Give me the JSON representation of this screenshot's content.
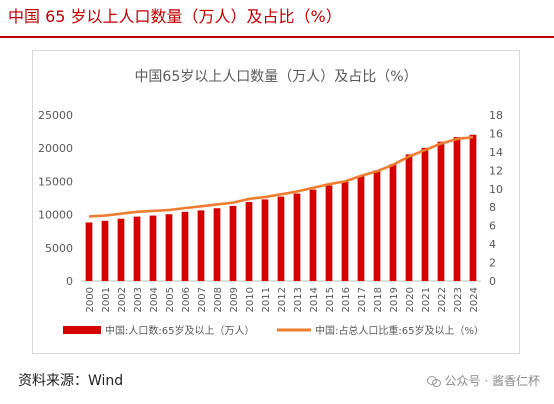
{
  "page": {
    "title": "中国 65 岁以上人口数量（万人）及占比（%）",
    "source": "资料来源：Wind",
    "watermark": "公众号 · 酱香仁杯"
  },
  "colors": {
    "title": "#c00000",
    "bar": "#d40000",
    "line": "#ed7d31"
  },
  "chart_data": {
    "type": "bar",
    "title": "中国65岁以上人口数量（万人）及占比（%）",
    "categories": [
      "2000",
      "2001",
      "2002",
      "2003",
      "2004",
      "2005",
      "2006",
      "2007",
      "2008",
      "2009",
      "2010",
      "2011",
      "2012",
      "2013",
      "2014",
      "2015",
      "2016",
      "2017",
      "2018",
      "2019",
      "2020",
      "2021",
      "2022",
      "2023",
      "2024"
    ],
    "series": [
      {
        "name": "中国:人口数:65岁及以上（万人）",
        "type": "bar",
        "axis": "left",
        "values": [
          8821,
          9062,
          9377,
          9692,
          9857,
          10055,
          10419,
          10636,
          10956,
          11307,
          11894,
          12288,
          12714,
          13161,
          13755,
          14386,
          15003,
          15831,
          16658,
          17603,
          19064,
          20056,
          20978,
          21676,
          22023
        ]
      },
      {
        "name": "中国:占总人口比重:65岁及以上（%）",
        "type": "line",
        "axis": "right",
        "values": [
          7.0,
          7.1,
          7.3,
          7.5,
          7.6,
          7.7,
          7.9,
          8.1,
          8.3,
          8.5,
          8.9,
          9.1,
          9.4,
          9.7,
          10.1,
          10.5,
          10.8,
          11.4,
          11.9,
          12.6,
          13.5,
          14.2,
          14.9,
          15.4,
          15.6
        ]
      }
    ],
    "y_left": {
      "min": 0,
      "max": 25000,
      "ticks": [
        "0",
        "5000",
        "10000",
        "15000",
        "20000",
        "25000"
      ]
    },
    "y_right": {
      "min": 0,
      "max": 18,
      "ticks": [
        "0",
        "2",
        "4",
        "6",
        "8",
        "10",
        "12",
        "14",
        "16",
        "18"
      ]
    },
    "grid": false,
    "legend_position": "bottom"
  }
}
